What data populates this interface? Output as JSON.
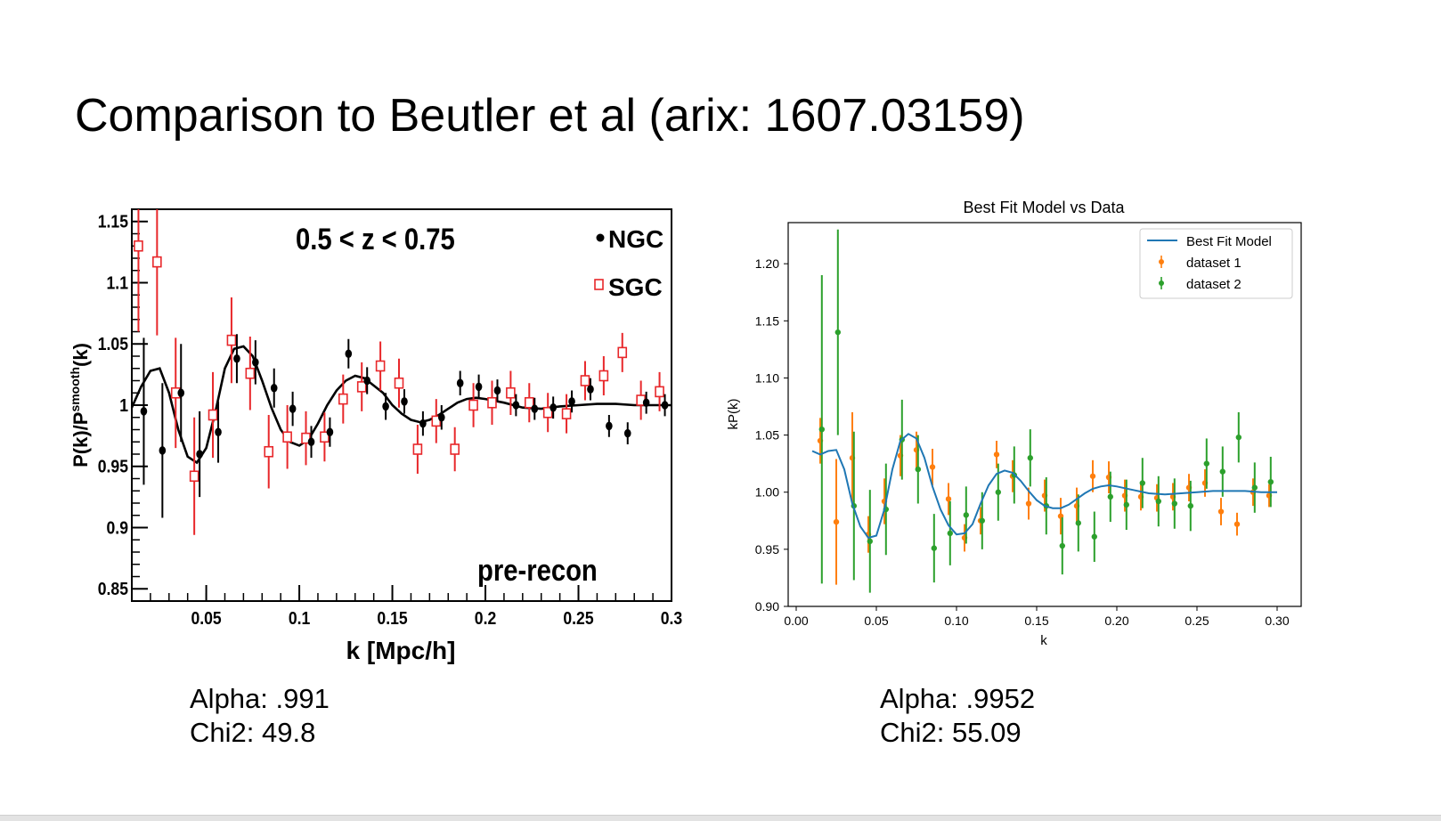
{
  "slide": {
    "title": "Comparison to Beutler et al (arix: 1607.03159)"
  },
  "left_stats": {
    "alpha": "Alpha: .991",
    "chi2": "Chi2: 49.8"
  },
  "right_stats": {
    "alpha": "Alpha: .9952",
    "chi2": "Chi2: 55.09"
  },
  "colors": {
    "ngc": "#000000",
    "sgc": "#e8272a",
    "model_left": "#000000",
    "model_right": "#1f77b4",
    "dataset1": "#ff7f0e",
    "dataset2": "#2ca02c"
  },
  "chart_data": [
    {
      "type": "scatter",
      "title": "",
      "annotation_range": "0.5 < z < 0.75",
      "annotation_recon": "pre-recon",
      "xlabel": "k [Mpc/h]",
      "ylabel": "P(k)/P",
      "ylabel_sup": "smooth",
      "ylabel_tail": "(k)",
      "xlim": [
        0.01,
        0.3
      ],
      "ylim": [
        0.84,
        1.16
      ],
      "xticks": [
        0.05,
        0.1,
        0.15,
        0.2,
        0.25,
        0.3
      ],
      "xtick_labels": [
        "0.05",
        "0.1",
        "0.15",
        "0.2",
        "0.25",
        "0.3"
      ],
      "yticks": [
        0.85,
        0.9,
        0.95,
        1.0,
        1.05,
        1.1,
        1.15
      ],
      "ytick_labels": [
        "0.85",
        "0.9",
        "0.95",
        "1",
        "1.05",
        "1.1",
        "1.15"
      ],
      "legend": {
        "position": "top-right",
        "ngc_label": "NGC",
        "sgc_label": "SGC"
      },
      "series": [
        {
          "name": "NGC",
          "marker": "filled-circle",
          "x": [
            0.015,
            0.025,
            0.035,
            0.045,
            0.055,
            0.065,
            0.075,
            0.085,
            0.095,
            0.105,
            0.115,
            0.125,
            0.135,
            0.145,
            0.155,
            0.165,
            0.175,
            0.185,
            0.195,
            0.205,
            0.215,
            0.225,
            0.235,
            0.245,
            0.255,
            0.265,
            0.275,
            0.285,
            0.295
          ],
          "y": [
            0.995,
            0.963,
            1.01,
            0.96,
            0.978,
            1.038,
            1.035,
            1.014,
            0.997,
            0.97,
            0.978,
            1.042,
            1.02,
            0.999,
            1.003,
            0.985,
            0.99,
            1.018,
            1.015,
            1.012,
            1.0,
            0.997,
            0.998,
            1.003,
            1.013,
            0.983,
            0.977,
            1.002,
            1.0
          ],
          "err": [
            0.06,
            0.055,
            0.04,
            0.035,
            0.025,
            0.02,
            0.018,
            0.016,
            0.014,
            0.013,
            0.012,
            0.012,
            0.011,
            0.011,
            0.01,
            0.01,
            0.01,
            0.01,
            0.01,
            0.009,
            0.009,
            0.009,
            0.009,
            0.009,
            0.009,
            0.009,
            0.009,
            0.009,
            0.009
          ]
        },
        {
          "name": "SGC",
          "marker": "open-square",
          "x": [
            0.015,
            0.025,
            0.035,
            0.045,
            0.055,
            0.065,
            0.075,
            0.085,
            0.095,
            0.105,
            0.115,
            0.125,
            0.135,
            0.145,
            0.155,
            0.165,
            0.175,
            0.185,
            0.195,
            0.205,
            0.215,
            0.225,
            0.235,
            0.245,
            0.255,
            0.265,
            0.275,
            0.285,
            0.295
          ],
          "y": [
            1.13,
            1.117,
            1.01,
            0.942,
            0.992,
            1.053,
            1.026,
            0.962,
            0.974,
            0.973,
            0.974,
            1.005,
            1.015,
            1.032,
            1.018,
            0.964,
            0.987,
            0.964,
            1.0,
            1.002,
            1.01,
            1.002,
            0.994,
            0.993,
            1.02,
            1.024,
            1.043,
            1.004,
            1.011
          ],
          "err": [
            0.07,
            0.06,
            0.045,
            0.048,
            0.035,
            0.035,
            0.03,
            0.03,
            0.026,
            0.022,
            0.02,
            0.02,
            0.02,
            0.02,
            0.02,
            0.02,
            0.018,
            0.018,
            0.018,
            0.018,
            0.018,
            0.016,
            0.016,
            0.016,
            0.016,
            0.016,
            0.016,
            0.016,
            0.016
          ]
        },
        {
          "name": "model",
          "marker": "line",
          "x": [
            0.01,
            0.015,
            0.02,
            0.025,
            0.03,
            0.035,
            0.04,
            0.045,
            0.05,
            0.055,
            0.06,
            0.065,
            0.07,
            0.075,
            0.08,
            0.085,
            0.09,
            0.095,
            0.1,
            0.105,
            0.11,
            0.115,
            0.12,
            0.125,
            0.13,
            0.135,
            0.14,
            0.145,
            0.15,
            0.155,
            0.16,
            0.165,
            0.17,
            0.175,
            0.18,
            0.185,
            0.19,
            0.195,
            0.2,
            0.21,
            0.22,
            0.23,
            0.24,
            0.25,
            0.26,
            0.27,
            0.28,
            0.29,
            0.3
          ],
          "y": [
            0.998,
            1.015,
            1.028,
            1.03,
            1.01,
            0.98,
            0.958,
            0.953,
            0.965,
            0.995,
            1.03,
            1.046,
            1.048,
            1.04,
            1.02,
            0.998,
            0.98,
            0.97,
            0.967,
            0.972,
            0.985,
            1.0,
            1.012,
            1.02,
            1.024,
            1.022,
            1.016,
            1.01,
            1.0,
            0.993,
            0.988,
            0.986,
            0.988,
            0.992,
            0.997,
            1.002,
            1.005,
            1.006,
            1.005,
            1.002,
            0.998,
            0.997,
            0.999,
            1.0,
            1.001,
            1.001,
            1.0,
            1.0,
            1.0
          ]
        }
      ]
    },
    {
      "type": "scatter",
      "title": "Best Fit Model vs Data",
      "xlabel": "k",
      "ylabel": "kP(k)",
      "xlim": [
        -0.005,
        0.315
      ],
      "ylim": [
        0.9,
        1.236
      ],
      "xticks": [
        0.0,
        0.05,
        0.1,
        0.15,
        0.2,
        0.25,
        0.3
      ],
      "xtick_labels": [
        "0.00",
        "0.05",
        "0.10",
        "0.15",
        "0.20",
        "0.25",
        "0.30"
      ],
      "yticks": [
        0.9,
        0.95,
        1.0,
        1.05,
        1.1,
        1.15,
        1.2
      ],
      "ytick_labels": [
        "0.90",
        "0.95",
        "1.00",
        "1.05",
        "1.10",
        "1.15",
        "1.20"
      ],
      "legend": {
        "position": "top-right",
        "labels": [
          "Best Fit Model",
          "dataset 1",
          "dataset 2"
        ]
      },
      "series": [
        {
          "name": "Best Fit Model",
          "marker": "line",
          "x": [
            0.01,
            0.015,
            0.02,
            0.025,
            0.03,
            0.035,
            0.04,
            0.045,
            0.05,
            0.055,
            0.06,
            0.065,
            0.07,
            0.075,
            0.08,
            0.085,
            0.09,
            0.095,
            0.1,
            0.105,
            0.11,
            0.115,
            0.12,
            0.125,
            0.13,
            0.135,
            0.14,
            0.145,
            0.15,
            0.155,
            0.16,
            0.165,
            0.17,
            0.175,
            0.18,
            0.185,
            0.19,
            0.195,
            0.2,
            0.21,
            0.22,
            0.23,
            0.24,
            0.25,
            0.26,
            0.27,
            0.28,
            0.29,
            0.3
          ],
          "y": [
            1.036,
            1.033,
            1.036,
            1.037,
            1.02,
            0.99,
            0.97,
            0.96,
            0.962,
            0.985,
            1.02,
            1.045,
            1.051,
            1.047,
            1.03,
            1.005,
            0.985,
            0.971,
            0.963,
            0.964,
            0.972,
            0.99,
            1.006,
            1.016,
            1.019,
            1.017,
            1.01,
            1.001,
            0.993,
            0.988,
            0.986,
            0.986,
            0.989,
            0.994,
            0.999,
            1.003,
            1.005,
            1.006,
            1.005,
            1.002,
            0.999,
            0.998,
            0.999,
            1.0,
            1.001,
            1.001,
            1.001,
            1.0,
            1.0
          ]
        },
        {
          "name": "dataset 1",
          "marker": "point",
          "x": [
            0.015,
            0.025,
            0.035,
            0.045,
            0.055,
            0.065,
            0.075,
            0.085,
            0.095,
            0.105,
            0.115,
            0.125,
            0.135,
            0.145,
            0.155,
            0.165,
            0.175,
            0.185,
            0.195,
            0.205,
            0.215,
            0.225,
            0.235,
            0.245,
            0.255,
            0.265,
            0.275,
            0.285,
            0.295
          ],
          "y": [
            1.045,
            0.974,
            1.03,
            0.963,
            0.992,
            1.032,
            1.037,
            1.022,
            0.994,
            0.96,
            0.975,
            1.033,
            1.014,
            0.99,
            0.997,
            0.979,
            0.988,
            1.014,
            1.013,
            0.997,
            0.996,
            0.995,
            0.996,
            1.004,
            1.008,
            0.983,
            0.972,
            1.0,
            0.997
          ],
          "err": [
            0.02,
            0.055,
            0.04,
            0.016,
            0.02,
            0.018,
            0.016,
            0.016,
            0.014,
            0.012,
            0.012,
            0.012,
            0.014,
            0.014,
            0.014,
            0.016,
            0.016,
            0.014,
            0.014,
            0.014,
            0.012,
            0.012,
            0.012,
            0.012,
            0.012,
            0.012,
            0.01,
            0.012,
            0.01
          ]
        },
        {
          "name": "dataset 2",
          "marker": "point",
          "x": [
            0.016,
            0.026,
            0.036,
            0.046,
            0.056,
            0.066,
            0.076,
            0.086,
            0.096,
            0.106,
            0.116,
            0.126,
            0.136,
            0.146,
            0.156,
            0.166,
            0.176,
            0.186,
            0.196,
            0.206,
            0.216,
            0.226,
            0.236,
            0.246,
            0.256,
            0.266,
            0.276,
            0.286,
            0.296
          ],
          "y": [
            1.055,
            1.14,
            0.988,
            0.957,
            0.985,
            1.046,
            1.02,
            0.951,
            0.964,
            0.98,
            0.975,
            1.0,
            1.015,
            1.03,
            0.988,
            0.953,
            0.973,
            0.961,
            0.996,
            0.989,
            1.008,
            0.992,
            0.99,
            0.988,
            1.025,
            1.018,
            1.048,
            1.004,
            1.009
          ],
          "err": [
            0.135,
            0.09,
            0.065,
            0.045,
            0.04,
            0.035,
            0.03,
            0.03,
            0.028,
            0.025,
            0.025,
            0.025,
            0.025,
            0.025,
            0.025,
            0.025,
            0.025,
            0.022,
            0.022,
            0.022,
            0.022,
            0.022,
            0.022,
            0.022,
            0.022,
            0.022,
            0.022,
            0.022,
            0.022
          ]
        }
      ]
    }
  ]
}
